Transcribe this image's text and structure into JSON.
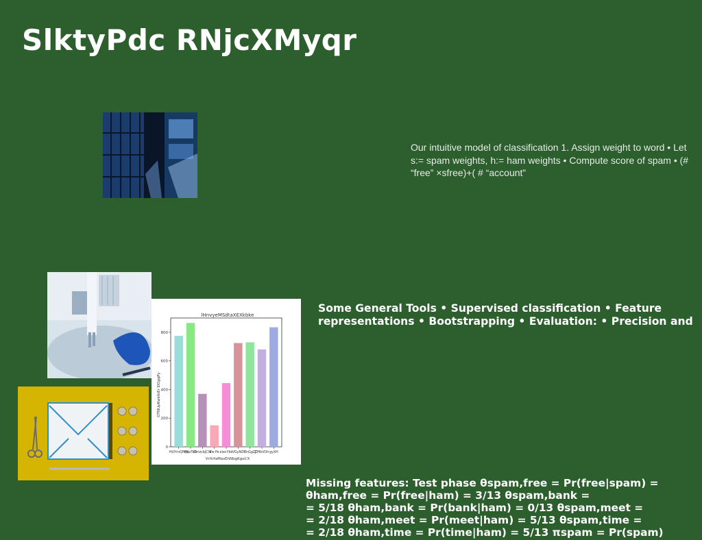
{
  "slide": {
    "title": "SlktyPdc  RNjcXMyqr",
    "paragraph_1": "Our intuitive model of classification 1. Assign weight to word • Let s:= spam weights, h:= ham weights • Compute score of spam • (# “free” ×sfree)+( # “account”",
    "paragraph_2_lines": [
      "Some General Tools • Supervised classification • Feature",
      "representations • Bootstrapping • Evaluation: • Precision and"
    ],
    "paragraph_3_lines": [
      "Missing features: Test phase θspam,free = Pr(free|spam) =",
      "θham,free = Pr(free|ham) = 3/13 θspam,bank =",
      "= 5/18 θham,bank = Pr(bank|ham) = 0/13 θspam,meet =",
      "= 2/18 θham,meet = Pr(meet|ham) = 5/13 θspam,time =",
      "= 2/18 θham,time = Pr(time|ham) = 5/13 πspam = Pr(spam)"
    ]
  },
  "chart_data": {
    "type": "bar",
    "title": "lHnvyeMSdtaXEXkbke",
    "xlabel": "VrXrfaMasEhNbgKgoCX",
    "ylabel": "OTNUpKwktkEr DOgqPy",
    "categories": [
      "HUYrnQPop",
      "PNpToO",
      "DmzcbJCW",
      "Ifw Pe",
      "elecYbk",
      "VGyND",
      "BnGgZJ",
      "ZMbVOh",
      "gyXH"
    ],
    "values": [
      775,
      865,
      370,
      150,
      445,
      725,
      730,
      680,
      835
    ],
    "colors": [
      "#99dcd8",
      "#86ea80",
      "#b790b8",
      "#f9a8b8",
      "#f48fd6",
      "#d8939a",
      "#8fe59b",
      "#c3aee0",
      "#9cabe0"
    ],
    "ylim": [
      0,
      900
    ],
    "yticks": [
      0,
      200,
      400,
      600,
      800
    ]
  }
}
